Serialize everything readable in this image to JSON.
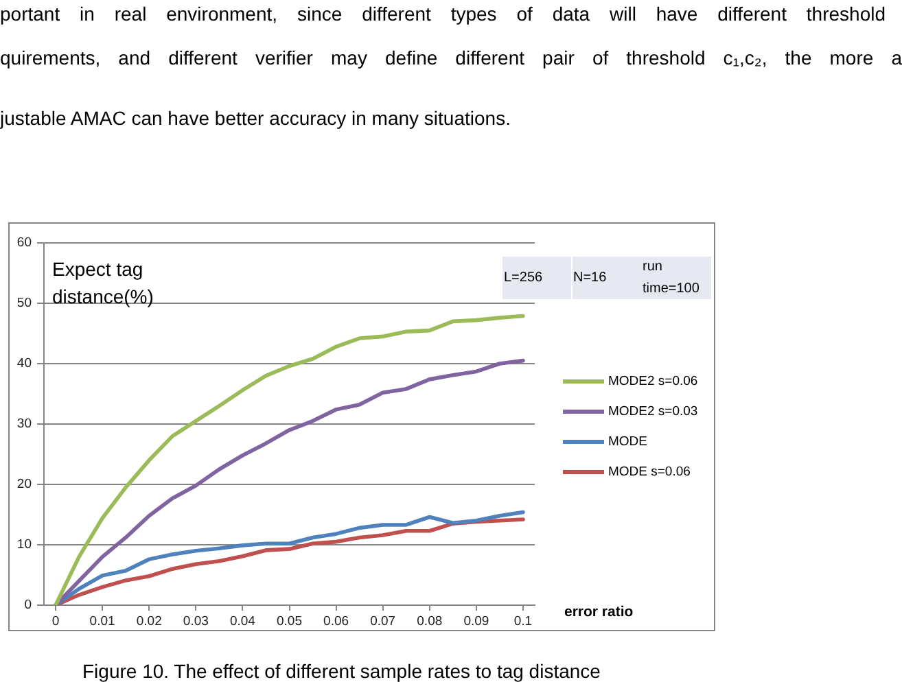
{
  "chart_data": {
    "type": "line",
    "xlabel": "error ratio",
    "ylabel": "Expect tag distance(%)",
    "x": [
      0,
      0.005,
      0.01,
      0.015,
      0.02,
      0.025,
      0.03,
      0.035,
      0.04,
      0.045,
      0.05,
      0.055,
      0.06,
      0.065,
      0.07,
      0.075,
      0.08,
      0.085,
      0.09,
      0.095,
      0.1
    ],
    "series": [
      {
        "name": "MODE2 s=0.06",
        "color": "#9bbb59",
        "values": [
          0,
          8.0,
          14.4,
          19.5,
          24.0,
          28.0,
          30.5,
          33.0,
          35.6,
          38.0,
          39.6,
          40.8,
          42.8,
          44.2,
          44.5,
          45.3,
          45.5,
          47.0,
          47.2,
          47.6,
          47.9
        ]
      },
      {
        "name": "MODE2 s=0.03",
        "color": "#8064a2",
        "values": [
          0,
          4.0,
          8.0,
          11.2,
          14.8,
          17.7,
          19.8,
          22.5,
          24.8,
          26.8,
          29.0,
          30.5,
          32.4,
          33.2,
          35.2,
          35.8,
          37.4,
          38.1,
          38.7,
          40.0,
          40.5
        ]
      },
      {
        "name": "MODE",
        "color": "#4f81bd",
        "values": [
          0,
          2.7,
          4.9,
          5.7,
          7.6,
          8.4,
          9.0,
          9.4,
          9.9,
          10.2,
          10.2,
          11.2,
          11.8,
          12.8,
          13.3,
          13.3,
          14.6,
          13.6,
          14.0,
          14.8,
          15.4
        ]
      },
      {
        "name": "MODE s=0.06",
        "color": "#c0504d",
        "values": [
          0,
          1.7,
          3.0,
          4.1,
          4.8,
          6.0,
          6.8,
          7.3,
          8.1,
          9.1,
          9.3,
          10.2,
          10.5,
          11.2,
          11.6,
          12.3,
          12.3,
          13.5,
          13.8,
          14.0,
          14.2
        ]
      }
    ],
    "xlim": [
      -0.0025,
      0.1025
    ],
    "xticks": [
      0,
      0.01,
      0.02,
      0.03,
      0.04,
      0.05,
      0.06,
      0.07,
      0.08,
      0.09,
      0.1
    ],
    "ylim": [
      0,
      60
    ],
    "yticks": [
      0,
      10,
      20,
      30,
      40,
      50,
      60
    ],
    "grid": "y",
    "legend": "right",
    "annotations": [
      "portant in real environment, since different types of data will have different threshold",
      "quirements, and different verifier may define different pair of threshold c₁,c₂, the more a",
      "justable AMAC can have better accuracy in many situations.",
      "L=256",
      "N=16",
      "run time=100",
      "Figure 10. The effect of different sample rates to tag distance"
    ]
  }
}
